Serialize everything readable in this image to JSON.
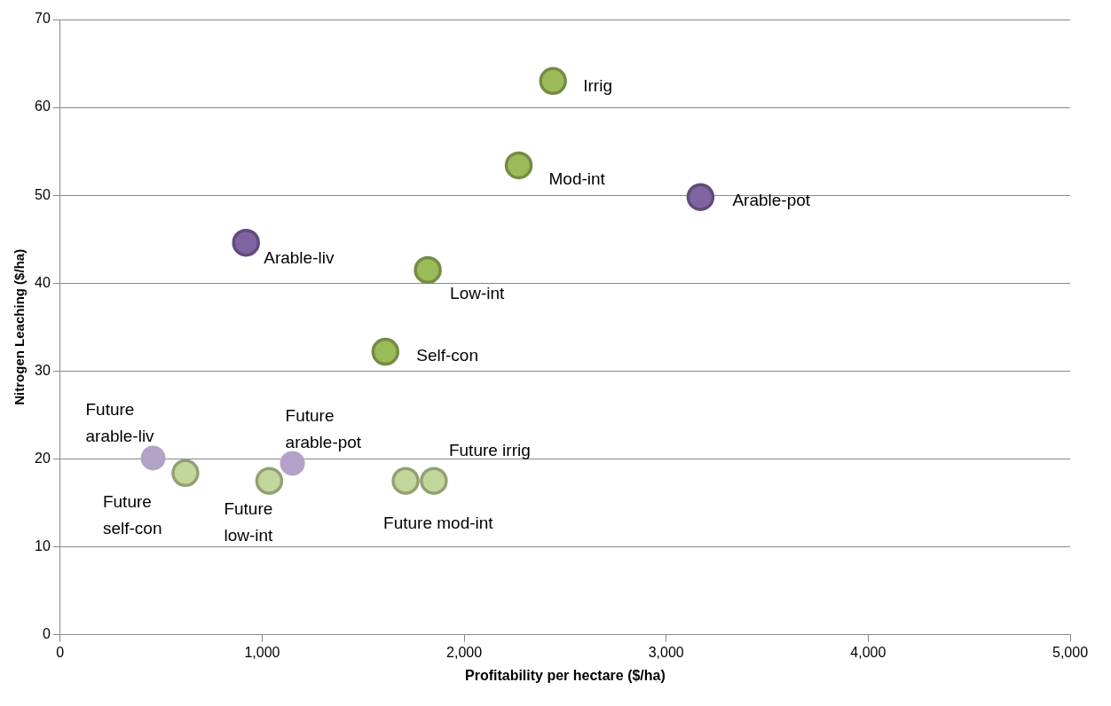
{
  "chart_data": {
    "type": "scatter",
    "xlabel": "Profitability per hectare ($/ha)",
    "ylabel": "Nitrogen Leaching ($/ha)",
    "xlim": [
      0,
      5000
    ],
    "xticks": [
      {
        "value": 0,
        "label": "0"
      },
      {
        "value": 1000,
        "label": "1,000"
      },
      {
        "value": 2000,
        "label": "2,000"
      },
      {
        "value": 3000,
        "label": "3,000"
      },
      {
        "value": 4000,
        "label": "4,000"
      },
      {
        "value": 5000,
        "label": "5,000"
      }
    ],
    "ylim": [
      0,
      70
    ],
    "yticks": [
      0,
      10,
      20,
      30,
      40,
      50,
      60,
      70
    ],
    "grid": "y",
    "marker": "circle",
    "series": [
      {
        "color": "#9bbb59",
        "x": [
          2440,
          2270,
          1820,
          1610
        ],
        "values": [
          63,
          53.4,
          41.5,
          32.2
        ]
      },
      {
        "color": "#8064a2",
        "x": [
          920,
          3170
        ],
        "values": [
          44.6,
          49.8
        ]
      },
      {
        "color": "#c3d69b",
        "x": [
          620,
          1035,
          1710,
          1850
        ],
        "values": [
          18.4,
          17.5,
          17.5,
          17.5
        ]
      },
      {
        "color": "#b3a2c7",
        "x": [
          460,
          1150
        ],
        "values": [
          20.1,
          19.5
        ]
      }
    ],
    "annotations": [
      {
        "text": "Irrig",
        "x": 2440,
        "y": 63
      },
      {
        "text": "Mod-int",
        "x": 2270,
        "y": 53.4
      },
      {
        "text": "Low-int",
        "x": 1820,
        "y": 41.5
      },
      {
        "text": "Self-con",
        "x": 1610,
        "y": 32.2
      },
      {
        "text": "Arable-liv",
        "x": 920,
        "y": 44.6
      },
      {
        "text": "Arable-pot",
        "x": 3170,
        "y": 49.8
      },
      {
        "text": "Future\nself-con",
        "x": 620,
        "y": 18.4
      },
      {
        "text": "Future\nlow-int",
        "x": 1035,
        "y": 17.5
      },
      {
        "text": "Future mod-int",
        "x": 1710,
        "y": 17.5
      },
      {
        "text": "Future irrig",
        "x": 1850,
        "y": 17.5
      },
      {
        "text": "Future\narable-liv",
        "x": 460,
        "y": 20.1
      },
      {
        "text": "Future\narable-pot",
        "x": 1150,
        "y": 19.5
      }
    ]
  }
}
